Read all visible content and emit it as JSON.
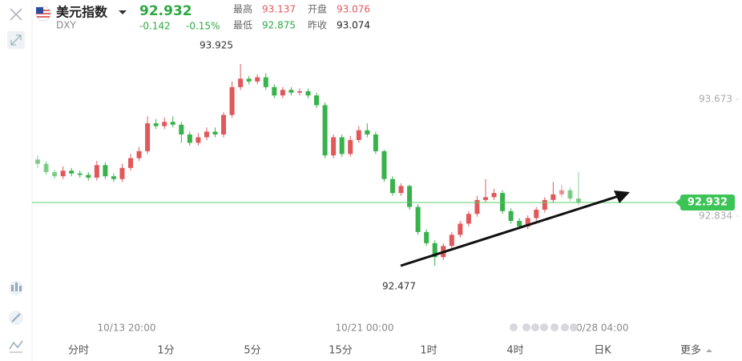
{
  "header": {
    "name": "美元指数",
    "code": "DXY",
    "price": "92.932",
    "change": "-0.142",
    "change_pct": "-0.15%",
    "stats": [
      {
        "label": "最高",
        "value": "93.137"
      },
      {
        "label": "开盘",
        "value": "93.076"
      },
      {
        "label": "最低",
        "value": "92.875"
      },
      {
        "label": "昨收",
        "value": "93.074"
      }
    ]
  },
  "chart_data": {
    "type": "candlestick",
    "up_color": "#e0585a",
    "down_color": "#38b24a",
    "ylim": [
      92.3,
      94.0
    ],
    "yticks": [
      93.673,
      92.834
    ],
    "current_price": 92.932,
    "x_labels": [
      "10/13 20:00",
      "10/21 00:00",
      "10/28 04:00"
    ],
    "annotations": [
      {
        "text": "93.925",
        "value": 93.925
      },
      {
        "text": "92.477",
        "value": 92.477
      }
    ],
    "open": [
      93.24,
      93.21,
      93.15,
      93.12,
      93.16,
      93.14,
      93.13,
      93.11,
      93.2,
      93.12,
      93.1,
      93.18,
      93.25,
      93.3,
      93.5,
      93.48,
      93.51,
      93.49,
      93.42,
      93.36,
      93.4,
      93.44,
      93.42,
      93.56,
      93.76,
      93.82,
      93.8,
      93.83,
      93.76,
      93.7,
      93.74,
      93.72,
      93.73,
      93.7,
      93.63,
      93.27,
      93.4,
      93.28,
      93.38,
      93.45,
      93.42,
      93.3,
      93.1,
      93.0,
      93.05,
      92.9,
      92.72,
      92.64,
      92.54,
      92.62,
      92.7,
      92.78,
      92.85,
      92.95,
      92.97,
      93.0,
      92.87,
      92.8,
      92.76,
      92.82,
      92.88,
      92.95,
      92.99,
      93.02,
      92.96
    ],
    "high": [
      93.27,
      93.23,
      93.17,
      93.19,
      93.18,
      93.16,
      93.15,
      93.23,
      93.22,
      93.14,
      93.21,
      93.28,
      93.33,
      93.55,
      93.53,
      93.54,
      93.55,
      93.51,
      93.44,
      93.43,
      93.47,
      93.47,
      93.58,
      93.8,
      93.925,
      93.84,
      93.85,
      93.86,
      93.78,
      93.76,
      93.76,
      93.75,
      93.75,
      93.72,
      93.65,
      93.42,
      93.42,
      93.41,
      93.48,
      93.5,
      93.44,
      93.31,
      93.12,
      93.07,
      93.06,
      92.92,
      92.74,
      92.66,
      92.64,
      92.72,
      92.8,
      92.87,
      92.98,
      93.1,
      93.03,
      93.02,
      92.89,
      92.82,
      92.84,
      92.9,
      92.97,
      93.08,
      93.06,
      93.04,
      93.15
    ],
    "low": [
      93.18,
      93.13,
      93.1,
      93.1,
      93.12,
      93.11,
      93.09,
      93.09,
      93.1,
      93.08,
      93.08,
      93.16,
      93.23,
      93.28,
      93.46,
      93.46,
      93.47,
      93.36,
      93.34,
      93.34,
      93.38,
      93.4,
      93.4,
      93.54,
      93.74,
      93.78,
      93.78,
      93.74,
      93.68,
      93.68,
      93.7,
      93.7,
      93.68,
      93.61,
      93.25,
      93.25,
      93.26,
      93.26,
      93.36,
      93.4,
      93.28,
      93.08,
      92.98,
      92.98,
      92.88,
      92.7,
      92.62,
      92.477,
      92.52,
      92.6,
      92.68,
      92.76,
      92.83,
      92.93,
      92.95,
      92.85,
      92.78,
      92.74,
      92.74,
      92.8,
      92.86,
      92.93,
      92.97,
      92.94,
      92.91
    ],
    "close": [
      93.21,
      93.15,
      93.12,
      93.16,
      93.14,
      93.13,
      93.11,
      93.2,
      93.12,
      93.1,
      93.18,
      93.25,
      93.3,
      93.5,
      93.48,
      93.51,
      93.49,
      93.42,
      93.36,
      93.4,
      93.44,
      93.42,
      93.56,
      93.76,
      93.82,
      93.8,
      93.83,
      93.76,
      93.7,
      93.74,
      93.72,
      93.73,
      93.7,
      93.63,
      93.27,
      93.4,
      93.28,
      93.38,
      93.45,
      93.42,
      93.3,
      93.1,
      93.0,
      93.05,
      92.9,
      92.72,
      92.64,
      92.54,
      92.62,
      92.7,
      92.78,
      92.85,
      92.95,
      92.97,
      93.0,
      92.87,
      92.8,
      92.76,
      92.82,
      92.88,
      92.95,
      92.99,
      93.02,
      92.96,
      92.932
    ]
  },
  "tabs": [
    "分时",
    "1分",
    "5分",
    "15分",
    "1时",
    "4时",
    "日K",
    "更多"
  ]
}
